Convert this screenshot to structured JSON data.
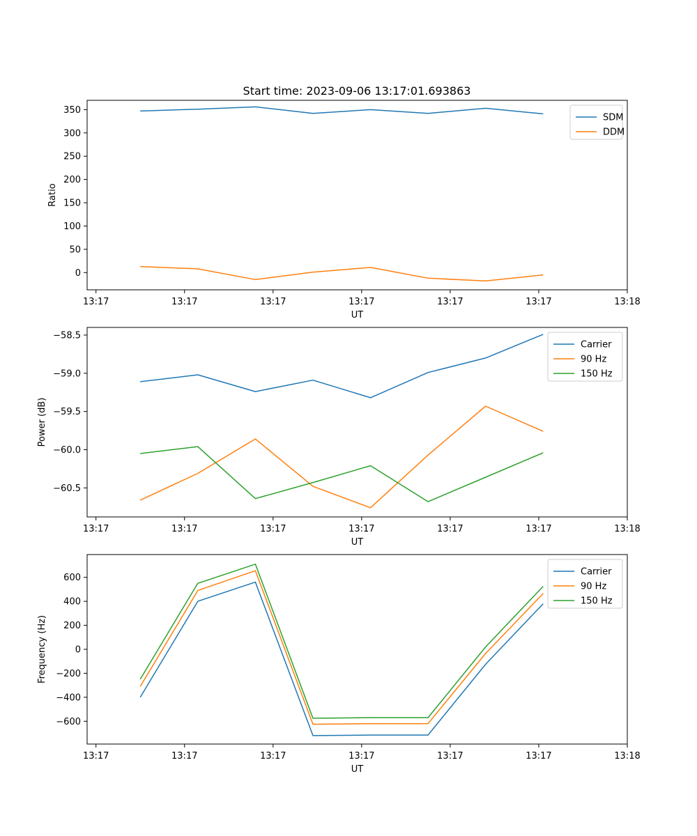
{
  "chart_data": [
    {
      "type": "line",
      "title": "Start time: 2023-09-06 13:17:01.693863",
      "xlabel": "UT",
      "ylabel": "Ratio",
      "x_tick_labels": [
        "13:17",
        "13:17",
        "13:17",
        "13:17",
        "13:17",
        "13:17",
        "13:18"
      ],
      "x": [
        0.5,
        1.15,
        1.8,
        2.45,
        3.1,
        3.75,
        4.4,
        5.05
      ],
      "xlim": [
        -0.1,
        6.0
      ],
      "yticks": [
        350,
        300,
        250,
        200,
        150,
        100,
        50,
        0
      ],
      "ylim": [
        -37,
        370
      ],
      "legend_position": "top-right",
      "series": [
        {
          "name": "SDM",
          "color": "#1f77b4",
          "values": [
            347,
            351,
            356,
            342,
            350,
            342,
            353,
            341
          ]
        },
        {
          "name": "DDM",
          "color": "#ff7f0e",
          "values": [
            13,
            8,
            -15,
            1,
            11,
            -12,
            -18,
            -5
          ]
        }
      ]
    },
    {
      "type": "line",
      "title": "",
      "xlabel": "UT",
      "ylabel": "Power (dB)",
      "x_tick_labels": [
        "13:17",
        "13:17",
        "13:17",
        "13:17",
        "13:17",
        "13:17",
        "13:18"
      ],
      "x": [
        0.5,
        1.15,
        1.8,
        2.45,
        3.1,
        3.75,
        4.4,
        5.05
      ],
      "xlim": [
        -0.1,
        6.0
      ],
      "yticks": [
        -58.5,
        -59.0,
        -59.5,
        -60.0,
        -60.5
      ],
      "ytick_labels": [
        "−58.5",
        "−59.0",
        "−59.5",
        "−60.0",
        "−60.5"
      ],
      "ylim": [
        -60.88,
        -58.4
      ],
      "legend_position": "top-right",
      "series": [
        {
          "name": "Carrier",
          "color": "#1f77b4",
          "values": [
            -59.11,
            -59.02,
            -59.24,
            -59.09,
            -59.32,
            -58.99,
            -58.8,
            -58.49
          ]
        },
        {
          "name": "90 Hz",
          "color": "#ff7f0e",
          "values": [
            -60.66,
            -60.31,
            -59.86,
            -60.48,
            -60.76,
            -60.07,
            -59.43,
            -59.76
          ]
        },
        {
          "name": "150 Hz",
          "color": "#2ca02c",
          "values": [
            -60.05,
            -59.96,
            -60.64,
            -60.43,
            -60.21,
            -60.68,
            -60.36,
            -60.04
          ]
        }
      ]
    },
    {
      "type": "line",
      "title": "",
      "xlabel": "UT",
      "ylabel": "Frequency (Hz)",
      "x_tick_labels": [
        "13:17",
        "13:17",
        "13:17",
        "13:17",
        "13:17",
        "13:17",
        "13:18"
      ],
      "x": [
        0.5,
        1.15,
        1.8,
        2.45,
        3.1,
        3.75,
        4.4,
        5.05
      ],
      "xlim": [
        -0.1,
        6.0
      ],
      "yticks": [
        600,
        400,
        200,
        0,
        -200,
        -400,
        -600
      ],
      "ytick_labels": [
        "600",
        "400",
        "200",
        "0",
        "−200",
        "−400",
        "−600"
      ],
      "ylim": [
        -790,
        790
      ],
      "legend_position": "top-right",
      "series": [
        {
          "name": "Carrier",
          "color": "#1f77b4",
          "values": [
            -400,
            400,
            560,
            -720,
            -715,
            -715,
            -125,
            380
          ]
        },
        {
          "name": "90 Hz",
          "color": "#ff7f0e",
          "values": [
            -310,
            490,
            655,
            -625,
            -620,
            -620,
            -35,
            465
          ]
        },
        {
          "name": "150 Hz",
          "color": "#2ca02c",
          "values": [
            -250,
            550,
            710,
            -575,
            -570,
            -570,
            20,
            525
          ]
        }
      ]
    }
  ]
}
